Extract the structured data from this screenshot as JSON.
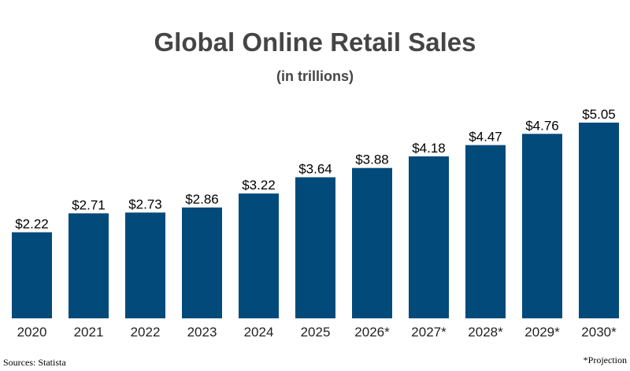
{
  "chart_data": {
    "type": "bar",
    "title": "Global Online Retail Sales",
    "subtitle": "(in trillions)",
    "categories": [
      "2020",
      "2021",
      "2022",
      "2023",
      "2024",
      "2025",
      "2026*",
      "2027*",
      "2028*",
      "2029*",
      "2030*"
    ],
    "values": [
      2.22,
      2.71,
      2.73,
      2.86,
      3.22,
      3.64,
      3.88,
      4.18,
      4.47,
      4.76,
      5.05
    ],
    "value_labels": [
      "$2.22",
      "$2.71",
      "$2.73",
      "$2.86",
      "$3.22",
      "$3.64",
      "$3.88",
      "$4.18",
      "$4.47",
      "$4.76",
      "$5.05"
    ],
    "xlabel": "",
    "ylabel": "",
    "ylim": [
      0,
      5.05
    ],
    "grid": false,
    "bar_color": "#024A7A"
  },
  "footer": {
    "source": "Sources: Statista",
    "note": "*Projection"
  }
}
